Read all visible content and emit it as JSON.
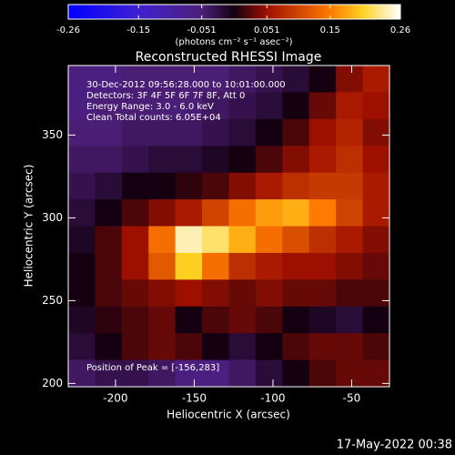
{
  "chart_data": {
    "type": "heatmap",
    "title": "Reconstructed RHESSI Image",
    "xlabel": "Heliocentric X (arcsec)",
    "ylabel": "Heliocentric Y (arcsec)",
    "xlim": [
      -230,
      -26
    ],
    "ylim": [
      198,
      392
    ],
    "xticks": [
      -200,
      -150,
      -100,
      -50
    ],
    "yticks": [
      200,
      250,
      300,
      350
    ],
    "colorbar": {
      "label": "(photons cm⁻² s⁻¹ asec⁻²)",
      "clim": [
        -0.26,
        0.26
      ],
      "ticks": [
        -0.26,
        -0.15,
        -0.051,
        0.051,
        0.15,
        0.26
      ],
      "colorscale": [
        [
          -0.26,
          "#0000ff"
        ],
        [
          -0.15,
          "#4020d0"
        ],
        [
          -0.051,
          "#4c1f78"
        ],
        [
          0,
          "#140010"
        ],
        [
          0.051,
          "#a01000"
        ],
        [
          0.15,
          "#ff7a00"
        ],
        [
          0.2,
          "#ffd020"
        ],
        [
          0.26,
          "#ffffff"
        ]
      ]
    },
    "annotations": [
      "30-Dec-2012 09:56:28.000 to 10:01:00.000",
      "Detectors: 3F 4F 5F 6F 7F 8F, Att 0",
      "Energy Range: 3.0 - 6.0 keV",
      "Clean     Total counts: 6.05E+04"
    ],
    "peak_label": "Position of Peak = [-156,283]",
    "timestamp": "17-May-2022 00:38",
    "z": [
      [
        -0.06,
        -0.06,
        -0.05,
        -0.05,
        -0.05,
        -0.05,
        -0.04,
        -0.03,
        -0.02,
        0.0,
        0.04,
        0.06
      ],
      [
        -0.06,
        -0.05,
        -0.05,
        -0.05,
        -0.05,
        -0.04,
        -0.03,
        -0.02,
        0.0,
        0.03,
        0.06,
        0.05
      ],
      [
        -0.05,
        -0.05,
        -0.04,
        -0.04,
        -0.04,
        -0.03,
        -0.02,
        0.0,
        0.02,
        0.05,
        0.07,
        0.04
      ],
      [
        -0.04,
        -0.04,
        -0.03,
        -0.02,
        -0.02,
        -0.01,
        0.0,
        0.02,
        0.04,
        0.06,
        0.08,
        0.05
      ],
      [
        -0.03,
        -0.02,
        0.0,
        0.0,
        0.01,
        0.02,
        0.04,
        0.06,
        0.08,
        0.09,
        0.09,
        0.06
      ],
      [
        -0.02,
        0.0,
        0.02,
        0.04,
        0.06,
        0.1,
        0.14,
        0.17,
        0.18,
        0.15,
        0.1,
        0.06
      ],
      [
        -0.01,
        0.02,
        0.05,
        0.14,
        0.24,
        0.22,
        0.18,
        0.14,
        0.11,
        0.08,
        0.06,
        0.04
      ],
      [
        0.0,
        0.02,
        0.05,
        0.12,
        0.2,
        0.14,
        0.08,
        0.06,
        0.05,
        0.05,
        0.04,
        0.03
      ],
      [
        0.0,
        0.02,
        0.03,
        0.04,
        0.05,
        0.04,
        0.03,
        0.04,
        0.03,
        0.03,
        0.02,
        0.02
      ],
      [
        -0.01,
        0.01,
        0.02,
        0.03,
        0.0,
        0.02,
        0.03,
        0.02,
        0.0,
        -0.01,
        -0.02,
        0.0
      ],
      [
        -0.02,
        0.0,
        0.02,
        0.03,
        0.02,
        0.0,
        -0.02,
        0.0,
        0.02,
        0.03,
        0.03,
        0.02
      ],
      [
        -0.04,
        -0.03,
        -0.03,
        -0.04,
        -0.06,
        -0.06,
        -0.04,
        -0.02,
        0.0,
        0.02,
        0.03,
        0.03
      ]
    ]
  }
}
